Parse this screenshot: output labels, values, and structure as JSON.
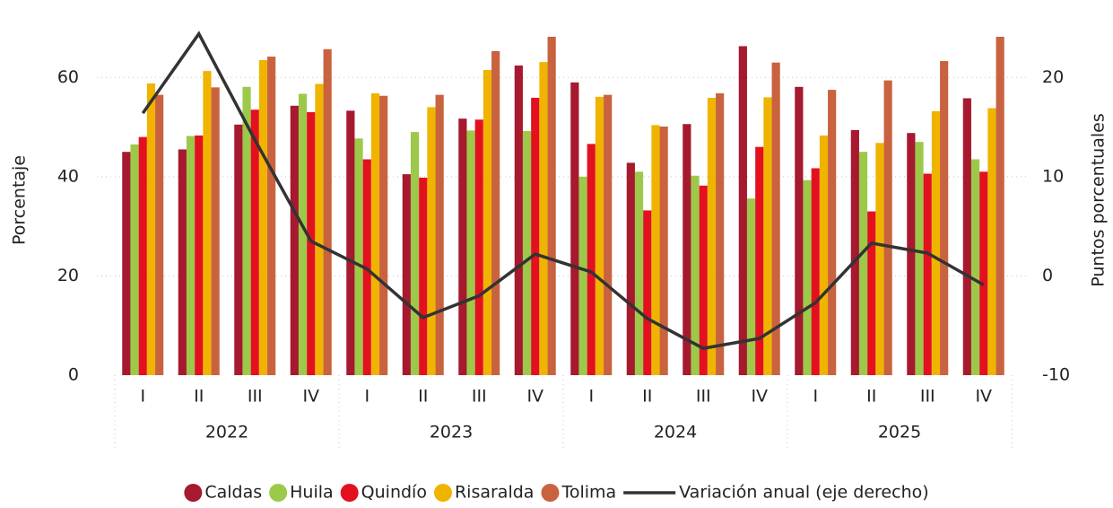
{
  "chart_data": {
    "type": "bar",
    "categories": [
      "I",
      "II",
      "III",
      "IV",
      "I",
      "II",
      "III",
      "IV",
      "I",
      "II",
      "III",
      "IV",
      "I",
      "II",
      "III",
      "IV"
    ],
    "years": [
      "2022",
      "2023",
      "2024",
      "2025"
    ],
    "ylabel": "Porcentaje",
    "y2label": "Puntos porcentuales",
    "ylim": [
      0,
      70
    ],
    "yticks": [
      0,
      20,
      40,
      60
    ],
    "y2lim": [
      -10,
      25
    ],
    "y2ticks": [
      -10,
      0,
      10,
      20
    ],
    "grid": true,
    "legend": "bottom",
    "series": [
      {
        "name": "Caldas",
        "color": "#a6192e",
        "values": [
          45,
          45.5,
          50.5,
          54.3,
          53.3,
          40.5,
          51.7,
          62.4,
          59,
          42.8,
          50.6,
          66.3,
          58.1,
          49.4,
          48.8,
          55.8
        ]
      },
      {
        "name": "Huila",
        "color": "#9dc94a",
        "values": [
          46.5,
          48.2,
          58.1,
          56.7,
          47.7,
          49,
          49.3,
          49.2,
          40,
          41,
          40.2,
          35.6,
          39.3,
          45,
          47,
          43.5
        ]
      },
      {
        "name": "Quindío",
        "color": "#e3101f",
        "values": [
          48,
          48.3,
          53.5,
          53,
          43.5,
          39.8,
          51.5,
          55.9,
          46.6,
          33.2,
          38.2,
          46,
          41.7,
          33,
          40.6,
          41
        ]
      },
      {
        "name": "Risaralda",
        "color": "#f0b400",
        "values": [
          58.8,
          61.3,
          63.5,
          58.7,
          56.8,
          54,
          61.5,
          63.1,
          56.1,
          50.4,
          55.9,
          56,
          48.3,
          46.8,
          53.2,
          53.8
        ]
      },
      {
        "name": "Tolima",
        "color": "#c9633f",
        "values": [
          56.5,
          58,
          64.2,
          65.7,
          56.3,
          56.5,
          65.3,
          68.2,
          56.5,
          50.1,
          56.8,
          63,
          57.5,
          59.4,
          63.3,
          68.2
        ]
      },
      {
        "name": "Variación anual (eje derecho)",
        "type": "line",
        "axis": "y2",
        "color": "#333333",
        "values": [
          16.4,
          24.4,
          13.7,
          3.5,
          0.7,
          -4.2,
          -2,
          2.2,
          0.4,
          -4.3,
          -7.3,
          -6.3,
          -2.7,
          3.3,
          2.3,
          -0.9
        ]
      }
    ]
  }
}
